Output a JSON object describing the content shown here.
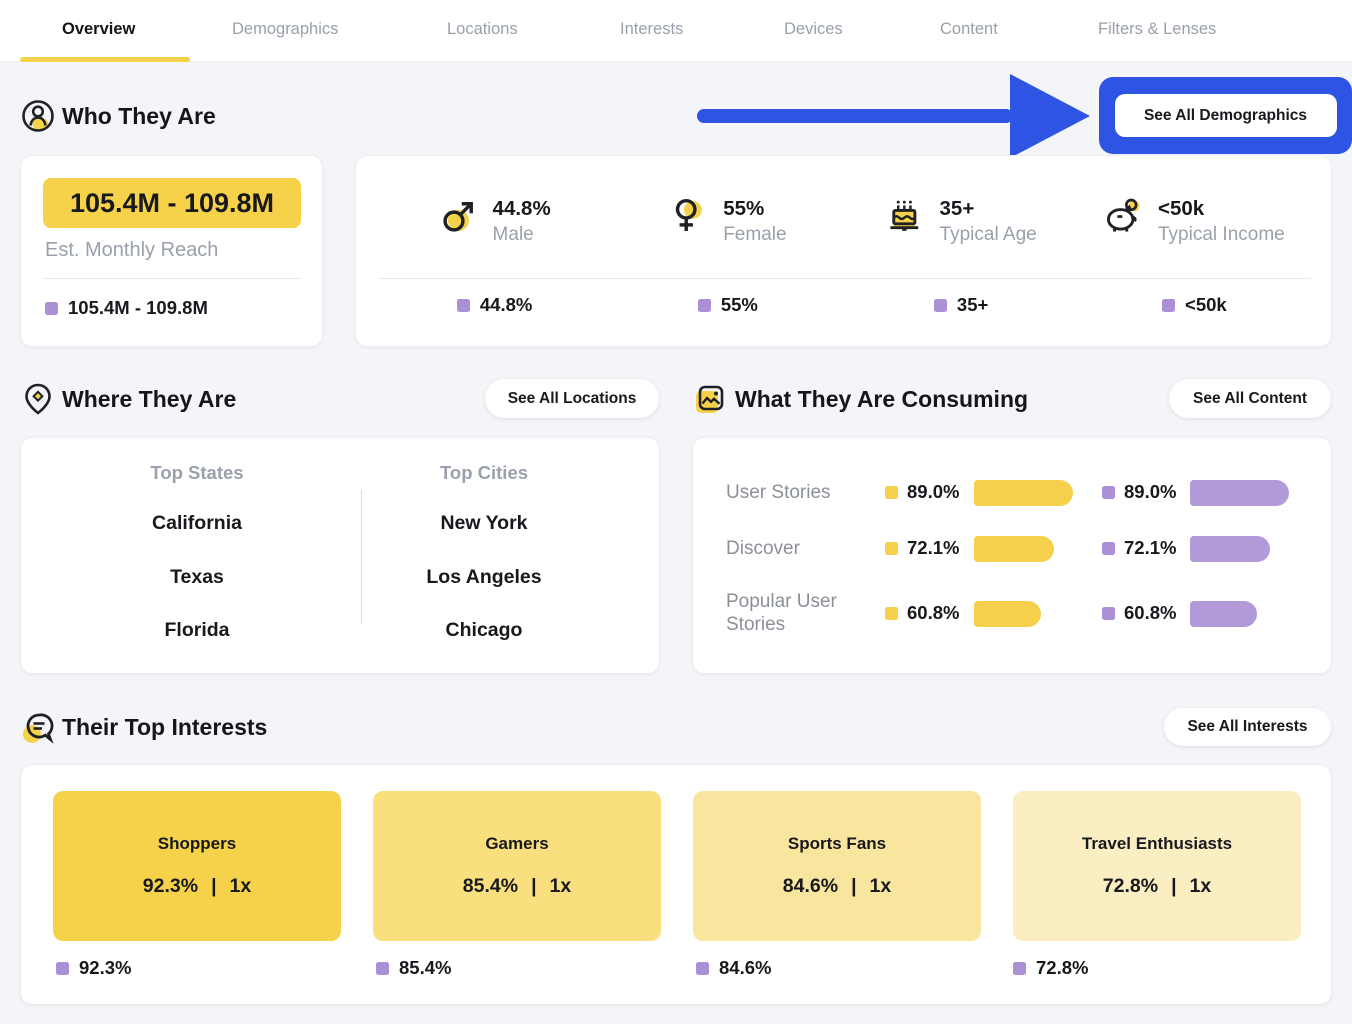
{
  "tabs": [
    {
      "label": "Overview"
    },
    {
      "label": "Demographics"
    },
    {
      "label": "Locations"
    },
    {
      "label": "Interests"
    },
    {
      "label": "Devices"
    },
    {
      "label": "Content"
    },
    {
      "label": "Filters & Lenses"
    }
  ],
  "who": {
    "title": "Who They Are",
    "see_all": "See All Demographics",
    "reach_value": "105.4M - 109.8M",
    "reach_label": "Est. Monthly Reach",
    "reach_footer": "105.4M - 109.8M",
    "stats": [
      {
        "icon": "male-icon",
        "value": "44.8%",
        "label": "Male",
        "footer": "44.8%"
      },
      {
        "icon": "female-icon",
        "value": "55%",
        "label": "Female",
        "footer": "55%"
      },
      {
        "icon": "birthday-cake-icon",
        "value": "35+",
        "label": "Typical Age",
        "footer": "35+"
      },
      {
        "icon": "piggy-bank-icon",
        "value": "<50k",
        "label": "Typical Income",
        "footer": "<50k"
      }
    ]
  },
  "where": {
    "title": "Where They Are",
    "see_all": "See All Locations",
    "states_header": "Top States",
    "cities_header": "Top Cities",
    "states": [
      "California",
      "Texas",
      "Florida"
    ],
    "cities": [
      "New York",
      "Los Angeles",
      "Chicago"
    ]
  },
  "consuming": {
    "title": "What They Are Consuming",
    "see_all": "See All Content",
    "rows": [
      {
        "label": "User Stories",
        "pct": "89.0%",
        "value": 89.0
      },
      {
        "label": "Discover",
        "pct": "72.1%",
        "value": 72.1
      },
      {
        "label": "Popular User Stories",
        "pct": "60.8%",
        "value": 60.8
      }
    ]
  },
  "interests": {
    "title": "Their Top Interests",
    "see_all": "See All Interests",
    "sep": "|",
    "tiles": [
      {
        "name": "Shoppers",
        "score": "92.3%",
        "mult": "1x",
        "footer": "92.3%",
        "bg": "#f6d24b"
      },
      {
        "name": "Gamers",
        "score": "85.4%",
        "mult": "1x",
        "footer": "85.4%",
        "bg": "#f9df7e"
      },
      {
        "name": "Sports Fans",
        "score": "84.6%",
        "mult": "1x",
        "footer": "84.6%",
        "bg": "#f9e69e"
      },
      {
        "name": "Travel Enthusiasts",
        "score": "72.8%",
        "mult": "1x",
        "footer": "72.8%",
        "bg": "#fbeec3"
      }
    ]
  },
  "colors": {
    "accent_yellow": "#f6d24b",
    "bar_yellow": "#f6cf4d",
    "bar_purple": "#b29ad8",
    "square_purple": "#ac90d6",
    "annotation_blue": "#2e54e4"
  }
}
